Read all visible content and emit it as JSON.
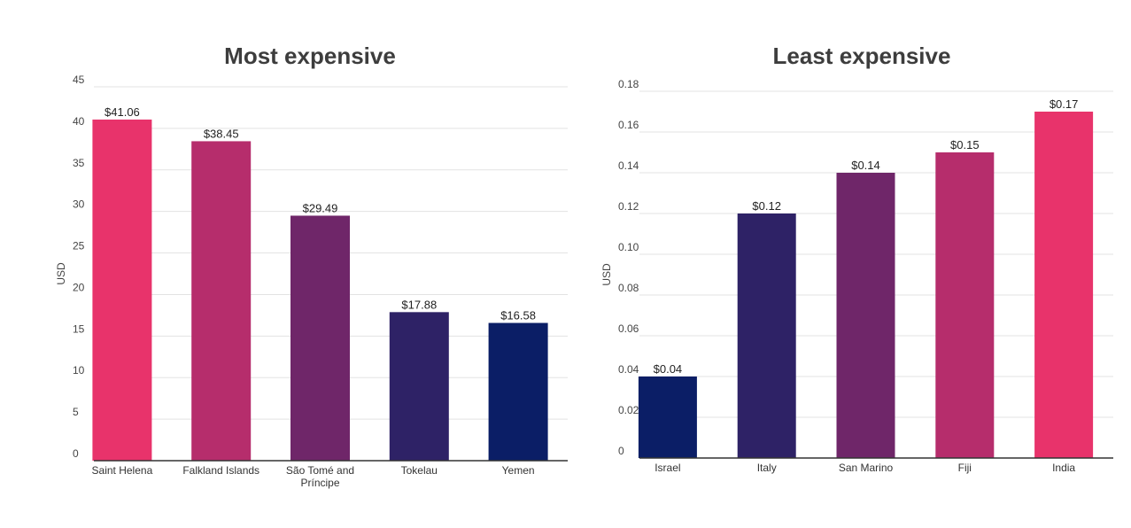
{
  "chart_data": [
    {
      "type": "bar",
      "title": "Most expensive",
      "ylabel": "USD",
      "xlabel": "",
      "ylim": [
        0,
        45
      ],
      "yticks": [
        0,
        5,
        10,
        15,
        20,
        25,
        30,
        35,
        40,
        45
      ],
      "categories": [
        "Saint Helena",
        "Falkland Islands",
        "São Tomé and Príncipe",
        "Tokelau",
        "Yemen"
      ],
      "values": [
        41.06,
        38.45,
        29.49,
        17.88,
        16.58
      ],
      "data_labels": [
        "$41.06",
        "$38.45",
        "$29.49",
        "$17.88",
        "$16.58"
      ],
      "bar_colors": [
        "#e8336b",
        "#b62d6c",
        "#6f2669",
        "#2e2266",
        "#0b1e66"
      ],
      "grid": true,
      "legend": "none"
    },
    {
      "type": "bar",
      "title": "Least expensive",
      "ylabel": "USD",
      "xlabel": "",
      "ylim": [
        0,
        0.18
      ],
      "yticks": [
        "0",
        "0.02",
        "0.04",
        "0.06",
        "0.08",
        "0.10",
        "0.12",
        "0.14",
        "0.16",
        "0.18"
      ],
      "categories": [
        "Israel",
        "Italy",
        "San Marino",
        "Fiji",
        "India"
      ],
      "values": [
        0.04,
        0.12,
        0.14,
        0.15,
        0.17
      ],
      "data_labels": [
        "$0.04",
        "$0.12",
        "$0.14",
        "$0.15",
        "$0.17"
      ],
      "bar_colors": [
        "#0b1e66",
        "#2e2266",
        "#6f2669",
        "#b62d6c",
        "#e8336b"
      ],
      "grid": true,
      "legend": "none"
    }
  ]
}
